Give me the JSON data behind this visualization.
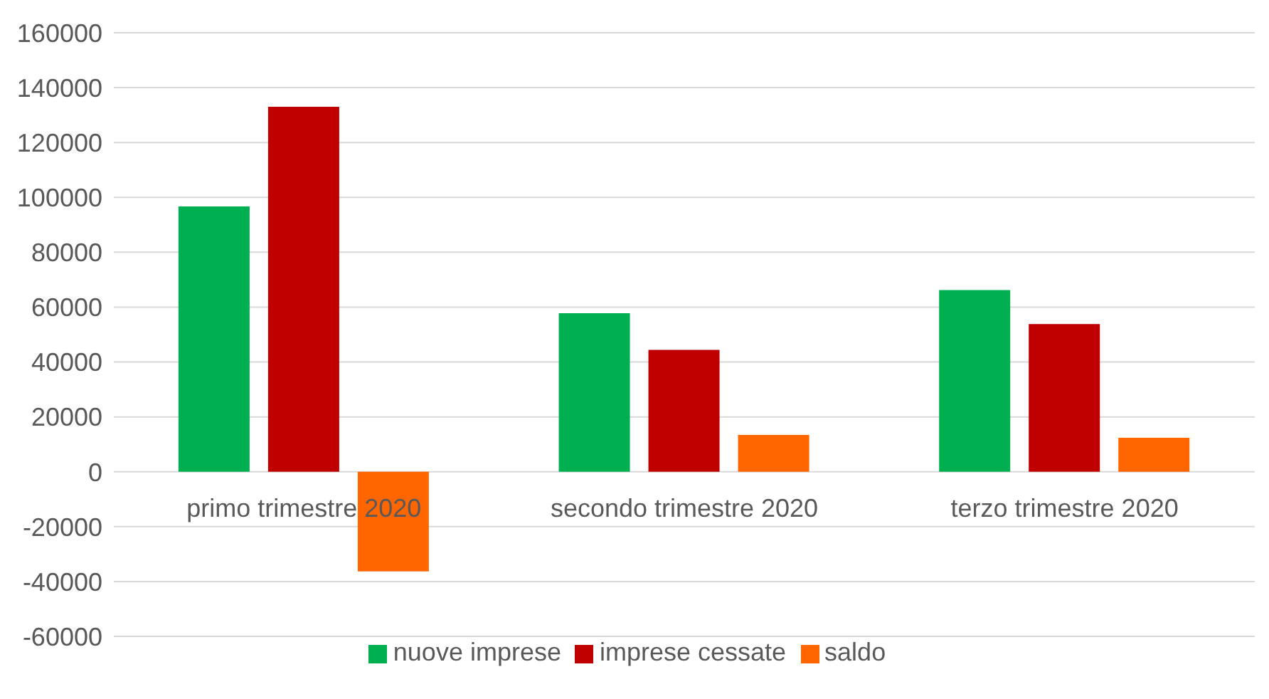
{
  "chart_data": {
    "type": "bar",
    "categories": [
      "primo trimestre 2020",
      "secondo trimestre 2020",
      "terzo trimestre 2020"
    ],
    "series": [
      {
        "name": "nuove imprese",
        "color": "#00b050",
        "values": [
          96700,
          57800,
          66200
        ]
      },
      {
        "name": "imprese cessate",
        "color": "#c00000",
        "values": [
          133000,
          44400,
          53800
        ]
      },
      {
        "name": "saldo",
        "color": "#ff6600",
        "values": [
          -36300,
          13400,
          12400
        ]
      }
    ],
    "ylim": [
      -60000,
      160000
    ],
    "yticks": [
      -60000,
      -40000,
      -20000,
      0,
      20000,
      40000,
      60000,
      80000,
      100000,
      120000,
      140000,
      160000
    ],
    "grid": "y",
    "legend": "bottom"
  }
}
